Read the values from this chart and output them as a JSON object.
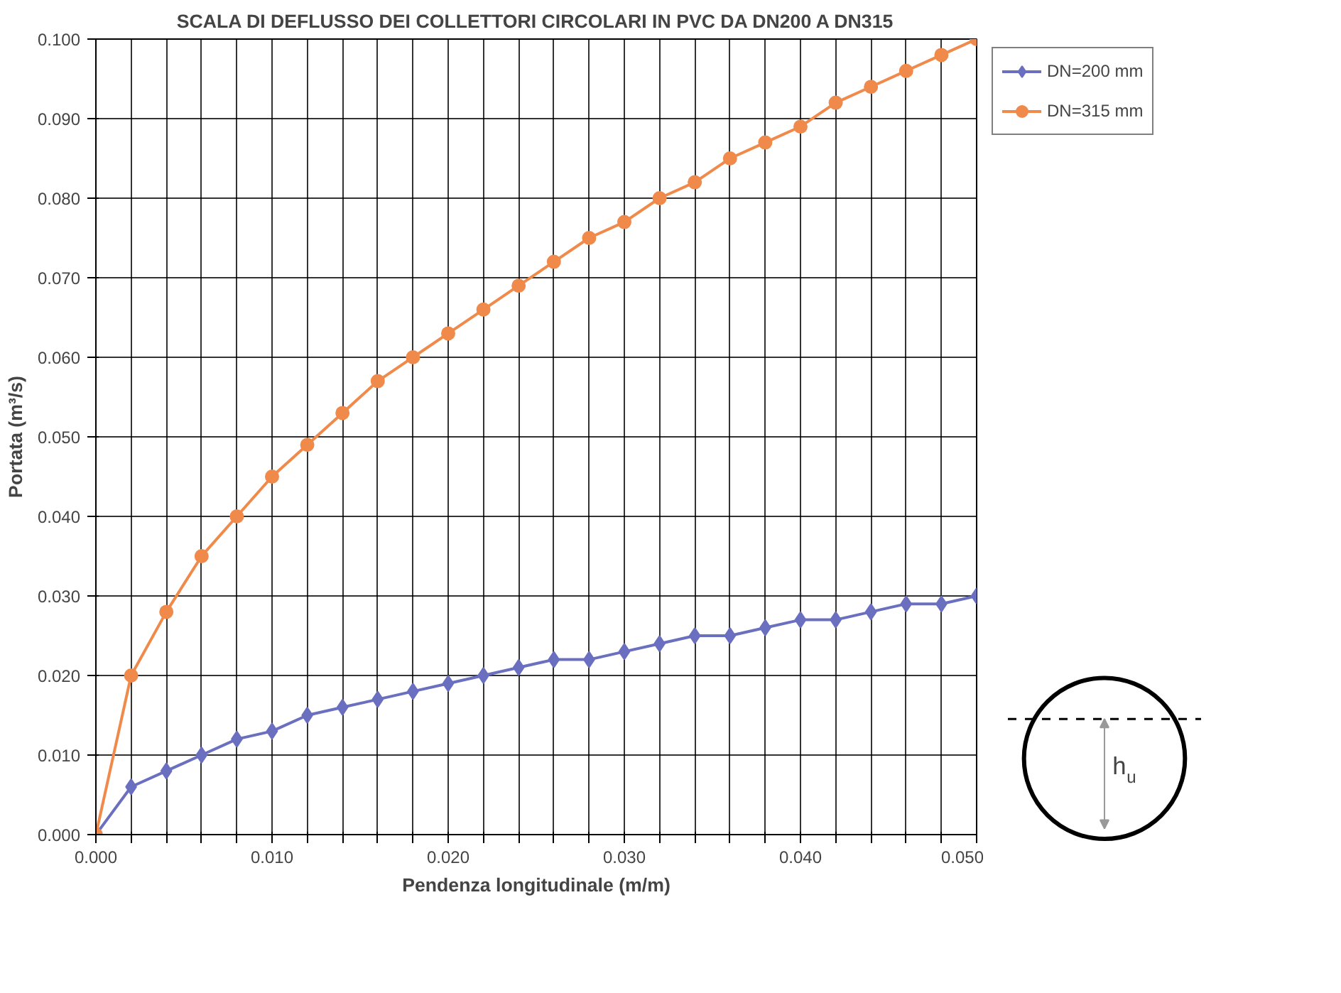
{
  "chart_data": {
    "type": "line",
    "title": "SCALA DI DEFLUSSO DEI COLLETTORI CIRCOLARI IN PVC DA DN200 A DN315",
    "xlabel": "Pendenza longitudinale (m/m)",
    "ylabel": "Portata (m³/s)",
    "x": [
      0,
      0.002,
      0.004,
      0.006,
      0.008,
      0.01,
      0.012,
      0.014,
      0.016,
      0.018,
      0.02,
      0.022,
      0.024,
      0.026,
      0.028,
      0.03,
      0.032,
      0.034,
      0.036,
      0.038,
      0.04,
      0.042,
      0.044,
      0.046,
      0.048,
      0.05
    ],
    "series": [
      {
        "name": "DN=200 mm",
        "color": "#6a6fc0",
        "marker": "diamond",
        "values": [
          0,
          0.006,
          0.008,
          0.01,
          0.012,
          0.013,
          0.015,
          0.016,
          0.017,
          0.018,
          0.019,
          0.02,
          0.021,
          0.022,
          0.022,
          0.023,
          0.024,
          0.025,
          0.025,
          0.026,
          0.027,
          0.027,
          0.028,
          0.029,
          0.029,
          0.03
        ]
      },
      {
        "name": "DN=315 mm",
        "color": "#f08a4b",
        "marker": "circle",
        "values": [
          0,
          0.02,
          0.028,
          0.035,
          0.04,
          0.045,
          0.049,
          0.053,
          0.057,
          0.06,
          0.063,
          0.066,
          0.069,
          0.072,
          0.075,
          0.077,
          0.08,
          0.082,
          0.085,
          0.087,
          0.089,
          0.092,
          0.094,
          0.096,
          0.098,
          0.1
        ]
      }
    ],
    "xlim": [
      0,
      0.05
    ],
    "ylim": [
      0,
      0.1
    ],
    "xticks": [
      {
        "value": 0,
        "label": "0.000"
      },
      {
        "value": 0.002,
        "label": null
      },
      {
        "value": 0.004,
        "label": null
      },
      {
        "value": 0.006,
        "label": null
      },
      {
        "value": 0.008,
        "label": null
      },
      {
        "value": 0.01,
        "label": "0.010"
      },
      {
        "value": 0.012,
        "label": null
      },
      {
        "value": 0.014,
        "label": null
      },
      {
        "value": 0.016,
        "label": null
      },
      {
        "value": 0.018,
        "label": null
      },
      {
        "value": 0.02,
        "label": "0.020"
      },
      {
        "value": 0.022,
        "label": null
      },
      {
        "value": 0.024,
        "label": null
      },
      {
        "value": 0.026,
        "label": null
      },
      {
        "value": 0.028,
        "label": null
      },
      {
        "value": 0.03,
        "label": "0.030"
      },
      {
        "value": 0.032,
        "label": null
      },
      {
        "value": 0.034,
        "label": null
      },
      {
        "value": 0.036,
        "label": null
      },
      {
        "value": 0.038,
        "label": null
      },
      {
        "value": 0.04,
        "label": "0.040"
      },
      {
        "value": 0.042,
        "label": null
      },
      {
        "value": 0.044,
        "label": null
      },
      {
        "value": 0.046,
        "label": null
      },
      {
        "value": 0.048,
        "label": null
      },
      {
        "value": 0.05,
        "label": "0.050"
      }
    ],
    "yticks": [
      {
        "value": 0,
        "label": "0.000"
      },
      {
        "value": 0.01,
        "label": "0.010"
      },
      {
        "value": 0.02,
        "label": "0.020"
      },
      {
        "value": 0.03,
        "label": "0.030"
      },
      {
        "value": 0.04,
        "label": "0.040"
      },
      {
        "value": 0.05,
        "label": "0.050"
      },
      {
        "value": 0.06,
        "label": "0.060"
      },
      {
        "value": 0.07,
        "label": "0.070"
      },
      {
        "value": 0.08,
        "label": "0.080"
      },
      {
        "value": 0.09,
        "label": "0.090"
      },
      {
        "value": 0.1,
        "label": "0.100"
      }
    ],
    "grid": true,
    "legend": "right",
    "line_style": "solid",
    "annotations": [
      "h$_{u}$"
    ]
  }
}
